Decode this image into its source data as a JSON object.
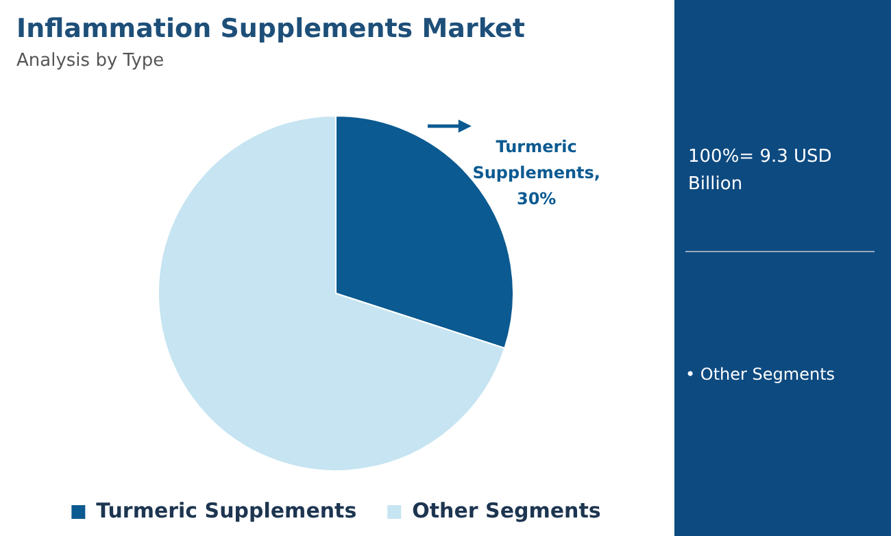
{
  "chart_data": {
    "type": "pie",
    "title": "Inflammation Supplements Market",
    "subtitle": "Analysis by Type",
    "categories": [
      "Turmeric Supplements",
      "Other Segments"
    ],
    "values": [
      30,
      70
    ],
    "colors": [
      "#0b5a91",
      "#c6e4f1"
    ],
    "value_labels": [
      "Turmeric Supplements, 30%",
      null
    ],
    "legend": "bottom",
    "annotations": [
      "100%= 9.3 USD Billion",
      "• Other Segments"
    ]
  }
}
